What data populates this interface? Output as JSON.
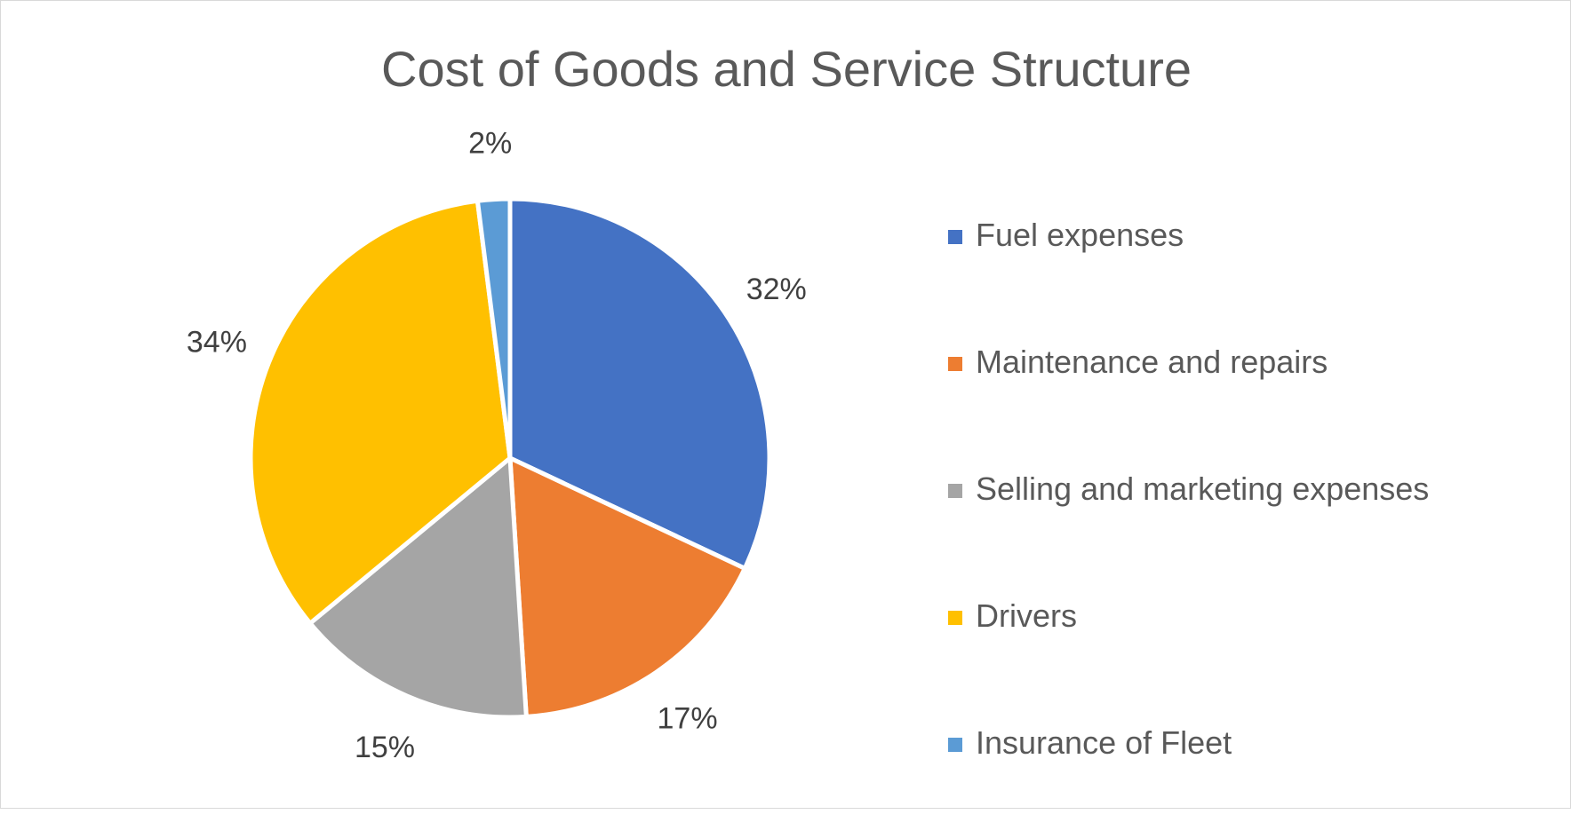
{
  "chart_data": {
    "type": "pie",
    "title": "Cost of Goods and Service Structure",
    "categories": [
      "Fuel expenses",
      "Maintenance and repairs",
      "Selling and marketing expenses",
      "Drivers",
      "Insurance of Fleet"
    ],
    "values": [
      32,
      17,
      15,
      34,
      2
    ],
    "data_labels": [
      "32%",
      "17%",
      "15%",
      "34%",
      "2%"
    ],
    "colors": [
      "#4472C4",
      "#ED7D31",
      "#A5A5A5",
      "#FFC000",
      "#5B9BD5"
    ],
    "start_angle_deg": 0,
    "direction": "clockwise",
    "legend": "right"
  }
}
